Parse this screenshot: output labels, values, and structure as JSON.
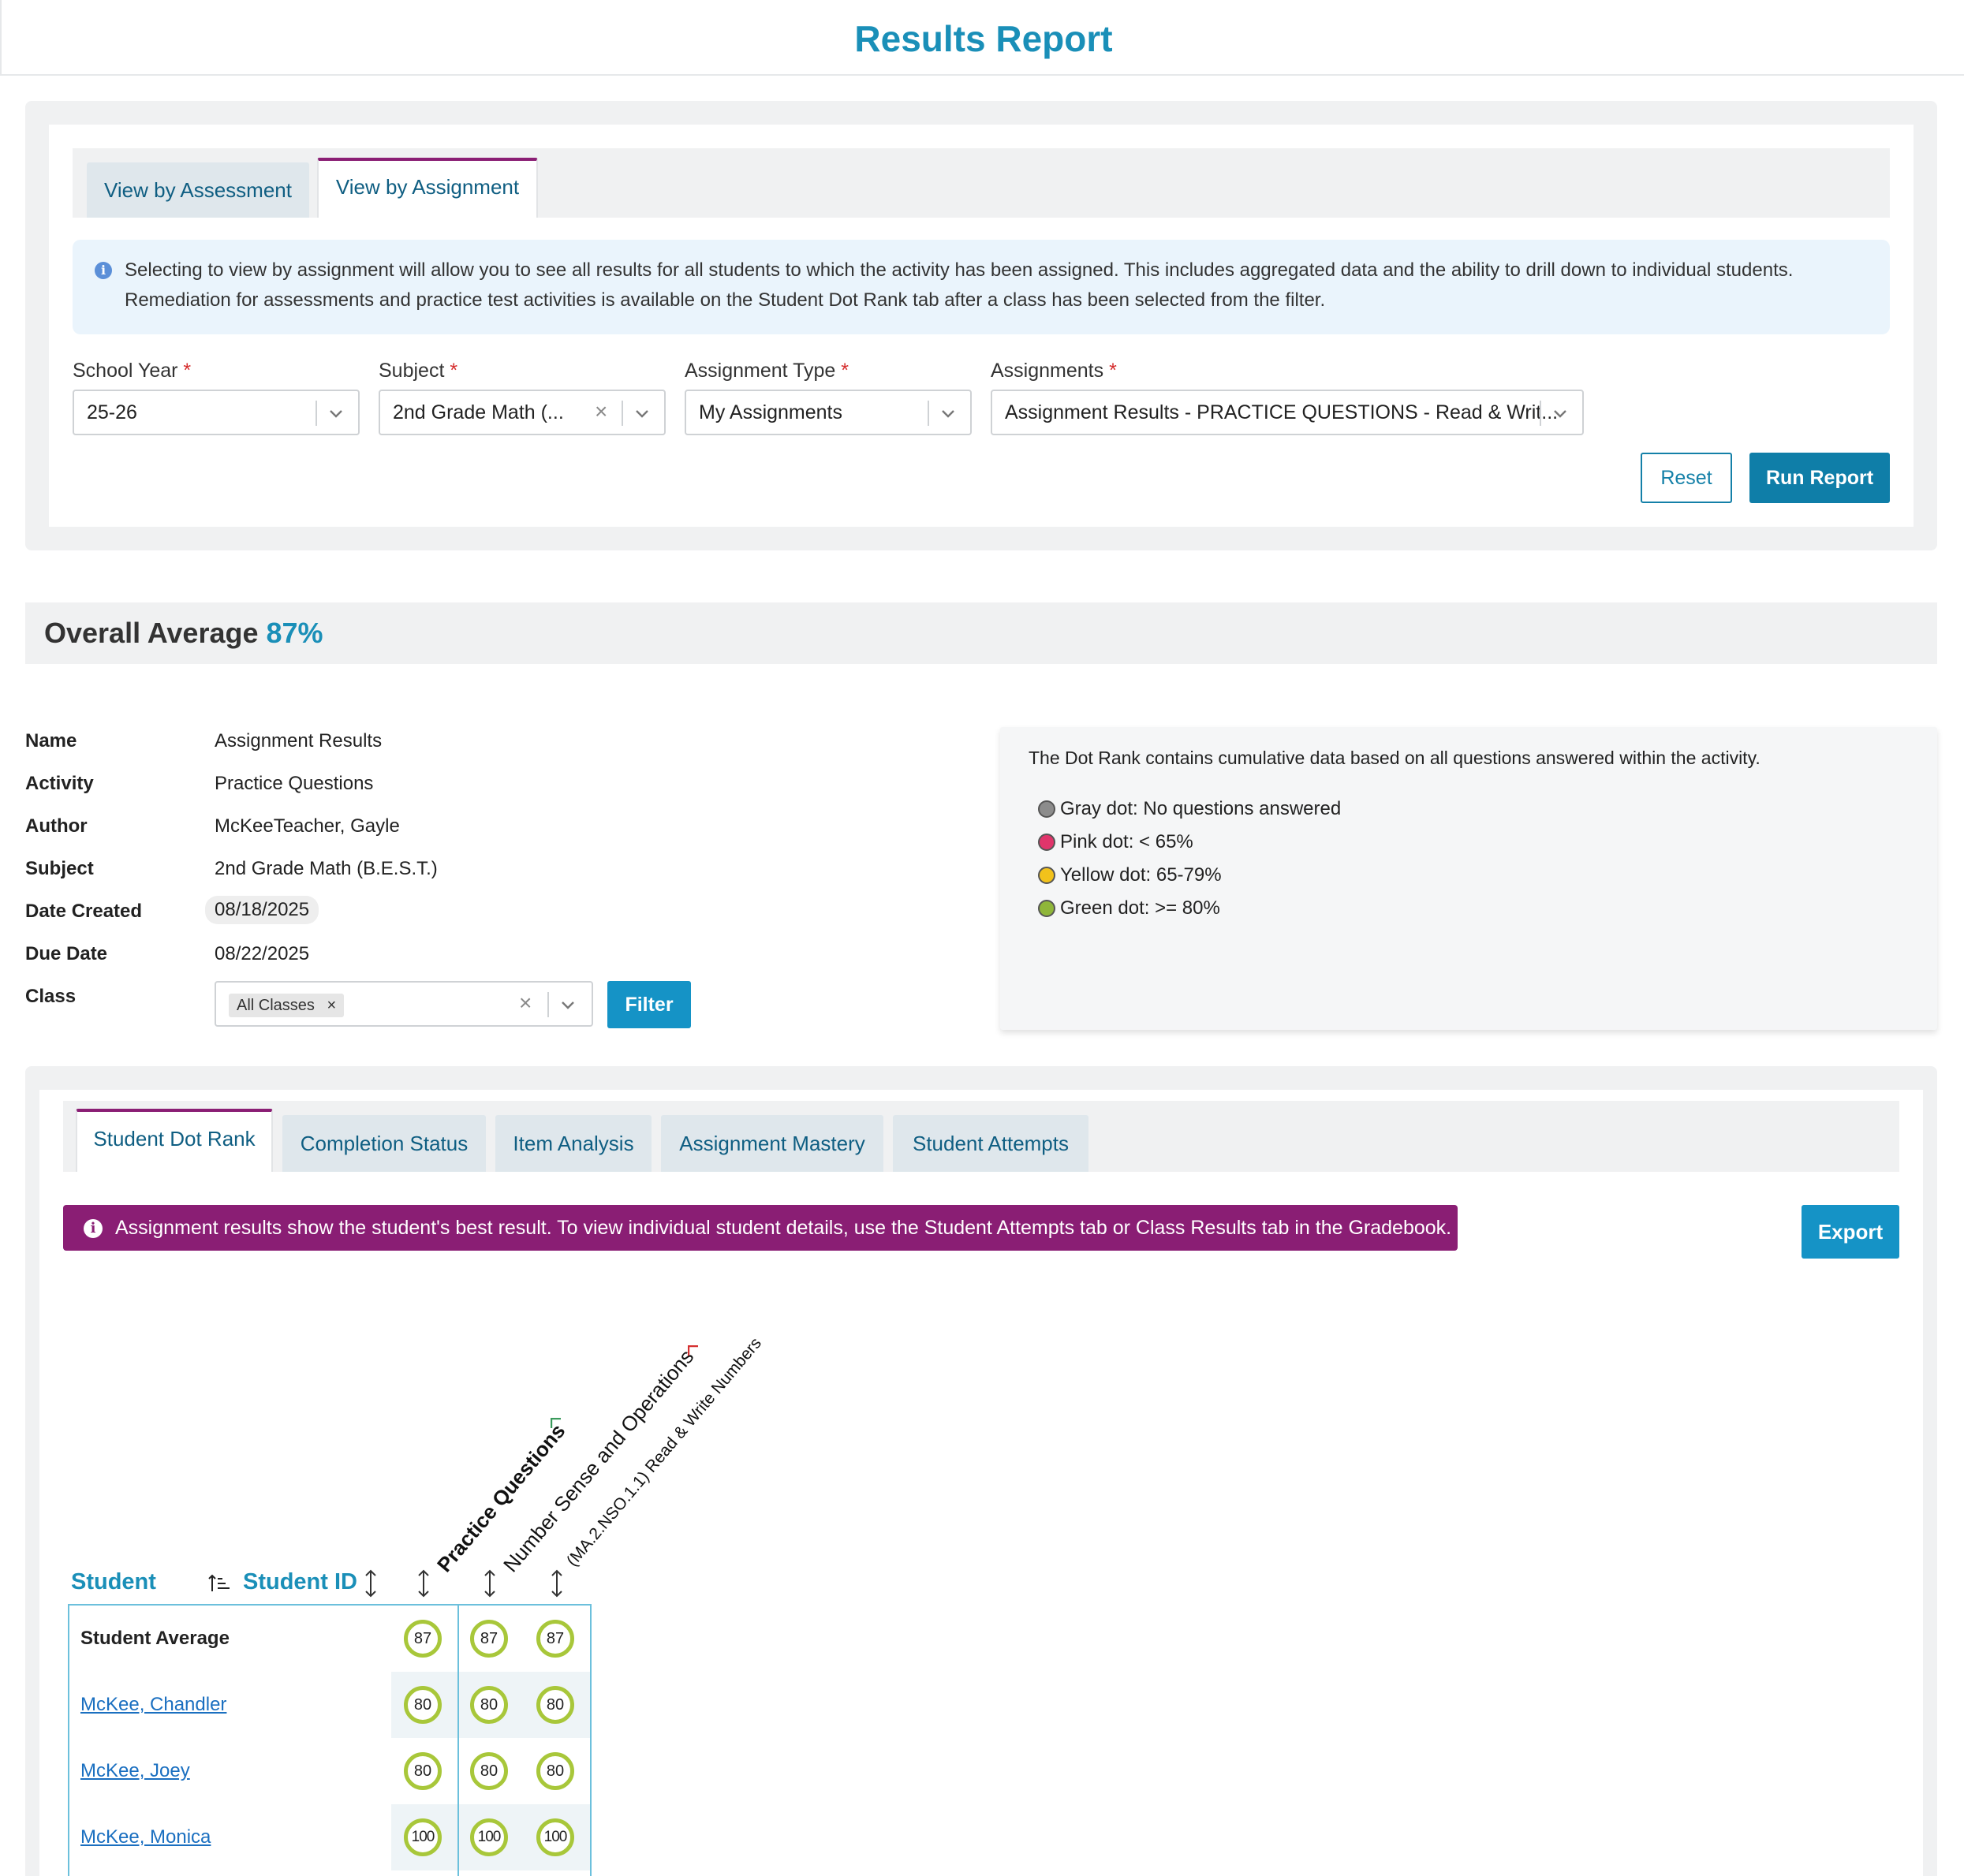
{
  "page": {
    "title": "Results Report"
  },
  "view_tabs": [
    {
      "label": "View by Assessment"
    },
    {
      "label": "View by Assignment"
    }
  ],
  "info": {
    "line1": "Selecting to view by assignment will allow you to see all results for all students to which the activity has been assigned. This includes aggregated data and the ability to drill down to individual students.",
    "line2": "Remediation for assessments and practice test activities is available on the Student Dot Rank tab after a class has been selected from the filter."
  },
  "filters": {
    "school_year": {
      "label": "School Year",
      "value": "25-26"
    },
    "subject": {
      "label": "Subject",
      "value": "2nd Grade Math (..."
    },
    "assignment_type": {
      "label": "Assignment Type",
      "value": "My Assignments"
    },
    "assignments": {
      "label": "Assignments",
      "value": "Assignment Results - PRACTICE QUESTIONS - Read & Writ..."
    },
    "required_mark": "*",
    "reset_label": "Reset",
    "run_label": "Run Report"
  },
  "overall": {
    "label": "Overall Average",
    "value": "87%"
  },
  "meta": {
    "name_label": "Name",
    "name": "Assignment Results",
    "activity_label": "Activity",
    "activity": "Practice Questions",
    "author_label": "Author",
    "author": "McKeeTeacher, Gayle",
    "subject_label": "Subject",
    "subject": "2nd Grade Math (B.E.S.T.)",
    "created_label": "Date Created",
    "created": "08/18/2025",
    "due_label": "Due Date",
    "due": "08/22/2025",
    "class_label": "Class",
    "class_chip": "All Classes",
    "filter_label": "Filter"
  },
  "legend": {
    "intro": "The Dot Rank contains cumulative data based on all questions answered within the activity.",
    "items": [
      {
        "label": "Gray dot: No questions answered",
        "color": "#8c8c8c"
      },
      {
        "label": "Pink dot: < 65%",
        "color": "#e0356b"
      },
      {
        "label": "Yellow dot: 65-79%",
        "color": "#f2c21b"
      },
      {
        "label": "Green dot: >= 80%",
        "color": "#8fb63a"
      }
    ]
  },
  "report_tabs": [
    {
      "label": "Student Dot Rank"
    },
    {
      "label": "Completion Status"
    },
    {
      "label": "Item Analysis"
    },
    {
      "label": "Assignment Mastery"
    },
    {
      "label": "Student Attempts"
    }
  ],
  "alert": {
    "text": "Assignment results show the student's best result. To view individual student details, use the Student Attempts tab or Class Results tab in the Gradebook."
  },
  "export_label": "Export",
  "table": {
    "student_header": "Student",
    "student_id_header": "Student ID",
    "columns": [
      {
        "label": "Practice Questions"
      },
      {
        "label": "Number Sense and Operations"
      },
      {
        "label": "(MA.2.NSO.1.1) Read & Write Numbers"
      }
    ],
    "rows": [
      {
        "name": "Student Average",
        "scores": [
          "87",
          "87",
          "87"
        ]
      },
      {
        "name": "McKee, Chandler",
        "scores": [
          "80",
          "80",
          "80"
        ]
      },
      {
        "name": "McKee, Joey",
        "scores": [
          "80",
          "80",
          "80"
        ]
      },
      {
        "name": "McKee, Monica",
        "scores": [
          "100",
          "100",
          "100"
        ]
      }
    ]
  }
}
